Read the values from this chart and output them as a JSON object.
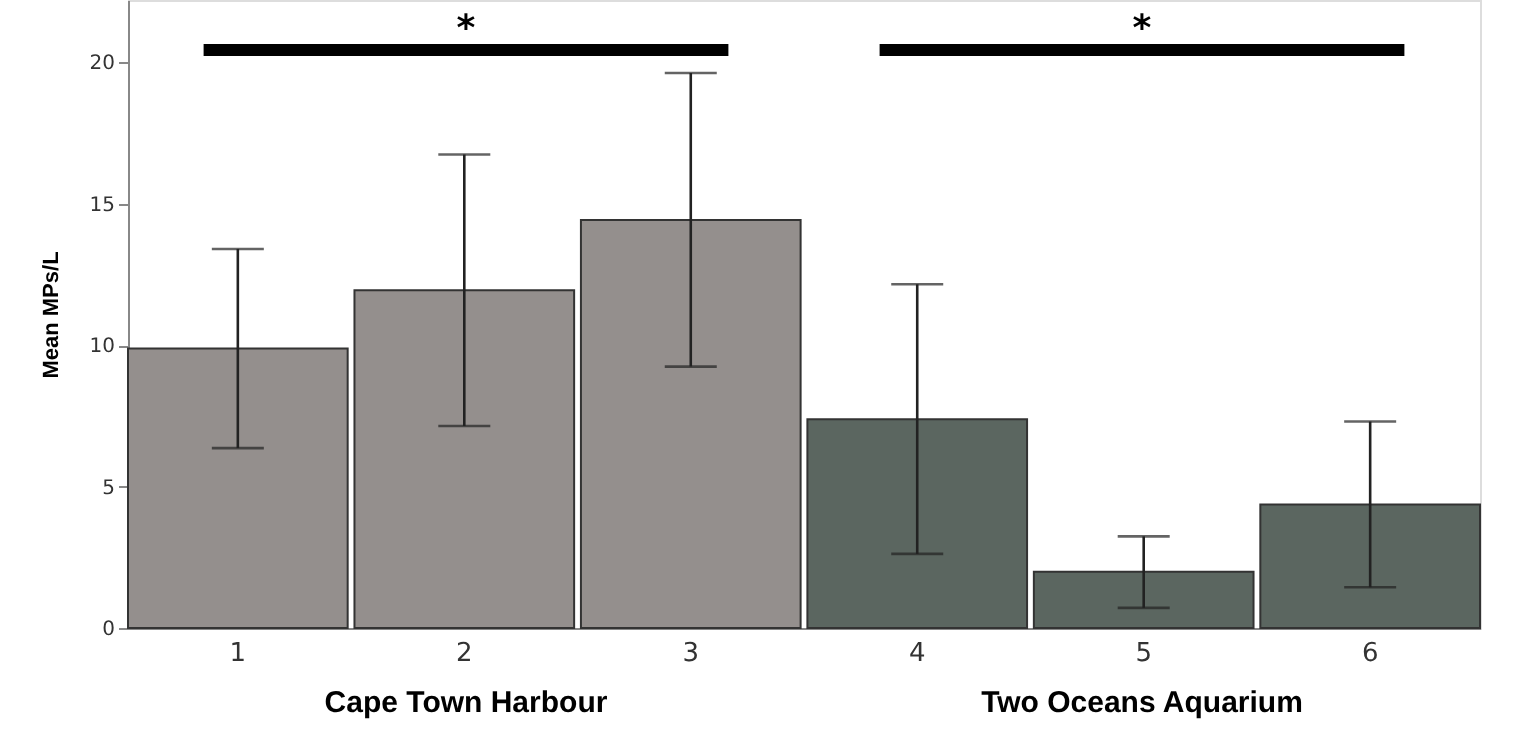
{
  "chart_data": {
    "type": "bar",
    "ylabel": "Mean MPs/L",
    "categories": [
      "1",
      "2",
      "3",
      "4",
      "5",
      "6"
    ],
    "values": [
      9.88,
      11.94,
      14.42,
      7.38,
      1.99,
      4.37
    ],
    "errors": [
      [
        6.36,
        13.4
      ],
      [
        7.14,
        16.74
      ],
      [
        9.24,
        19.62
      ],
      [
        2.62,
        12.15
      ],
      [
        0.71,
        3.24
      ],
      [
        1.44,
        7.3
      ]
    ],
    "colors": [
      "#948f8d",
      "#948f8d",
      "#948f8d",
      "#5b6660",
      "#5b6660",
      "#5b6660"
    ],
    "ylim": [
      0,
      22.2
    ],
    "yticks": [
      0,
      5,
      10,
      15,
      20
    ],
    "grid": false,
    "annotations": [
      "*",
      "*",
      "Cape Town Harbour",
      "Two Oceans Aquarium"
    ]
  }
}
